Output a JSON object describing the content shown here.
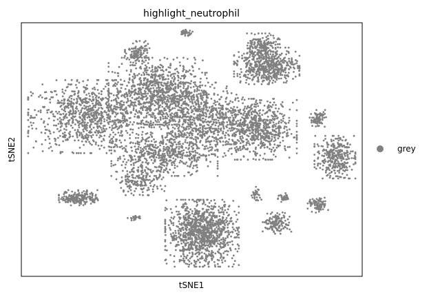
{
  "chart_data": {
    "type": "scatter",
    "title": "highlight_neutrophil",
    "xlabel": "tSNE1",
    "ylabel": "tSNE2",
    "xticks": "none",
    "yticks": "none",
    "grid": false,
    "legend_placement": "right, outside plot",
    "series": [
      {
        "name": "grey",
        "color": "#808080",
        "marker": "point",
        "clusters": [
          {
            "id": "main-left",
            "cx": 0.2,
            "cy": 0.63,
            "rx": 0.15,
            "ry": 0.12,
            "n": 900
          },
          {
            "id": "main-upper",
            "cx": 0.4,
            "cy": 0.73,
            "rx": 0.12,
            "ry": 0.11,
            "n": 800
          },
          {
            "id": "main-center",
            "cx": 0.52,
            "cy": 0.62,
            "rx": 0.14,
            "ry": 0.12,
            "n": 900
          },
          {
            "id": "main-right",
            "cx": 0.7,
            "cy": 0.58,
            "rx": 0.09,
            "ry": 0.1,
            "n": 600
          },
          {
            "id": "main-lower",
            "cx": 0.42,
            "cy": 0.48,
            "rx": 0.13,
            "ry": 0.07,
            "n": 500
          },
          {
            "id": "lower-tail",
            "cx": 0.35,
            "cy": 0.38,
            "rx": 0.06,
            "ry": 0.05,
            "n": 180
          },
          {
            "id": "bottom-cluster",
            "cx": 0.53,
            "cy": 0.17,
            "rx": 0.09,
            "ry": 0.11,
            "n": 1100
          },
          {
            "id": "top-right-cluster",
            "cx": 0.72,
            "cy": 0.83,
            "rx": 0.08,
            "ry": 0.06,
            "n": 550
          },
          {
            "id": "top-right-extra",
            "cx": 0.71,
            "cy": 0.91,
            "rx": 0.04,
            "ry": 0.04,
            "n": 160
          },
          {
            "id": "upper-mid-small",
            "cx": 0.34,
            "cy": 0.88,
            "rx": 0.03,
            "ry": 0.04,
            "n": 120
          },
          {
            "id": "top-small",
            "cx": 0.48,
            "cy": 0.96,
            "rx": 0.02,
            "ry": 0.01,
            "n": 30
          },
          {
            "id": "far-right-top",
            "cx": 0.87,
            "cy": 0.62,
            "rx": 0.02,
            "ry": 0.03,
            "n": 80
          },
          {
            "id": "far-right-mid",
            "cx": 0.92,
            "cy": 0.47,
            "rx": 0.05,
            "ry": 0.07,
            "n": 320
          },
          {
            "id": "left-island",
            "cx": 0.17,
            "cy": 0.31,
            "rx": 0.05,
            "ry": 0.025,
            "n": 200
          },
          {
            "id": "right-island-low",
            "cx": 0.75,
            "cy": 0.21,
            "rx": 0.035,
            "ry": 0.035,
            "n": 140
          },
          {
            "id": "right-island-mid",
            "cx": 0.87,
            "cy": 0.28,
            "rx": 0.025,
            "ry": 0.025,
            "n": 80
          },
          {
            "id": "right-island-b",
            "cx": 0.77,
            "cy": 0.31,
            "rx": 0.015,
            "ry": 0.015,
            "n": 30
          },
          {
            "id": "small-mid-right",
            "cx": 0.69,
            "cy": 0.32,
            "rx": 0.012,
            "ry": 0.03,
            "n": 30
          },
          {
            "id": "small-left-lower",
            "cx": 0.33,
            "cy": 0.23,
            "rx": 0.015,
            "ry": 0.01,
            "n": 25
          }
        ]
      }
    ],
    "legend": [
      {
        "label": "grey",
        "color": "#808080"
      }
    ]
  }
}
